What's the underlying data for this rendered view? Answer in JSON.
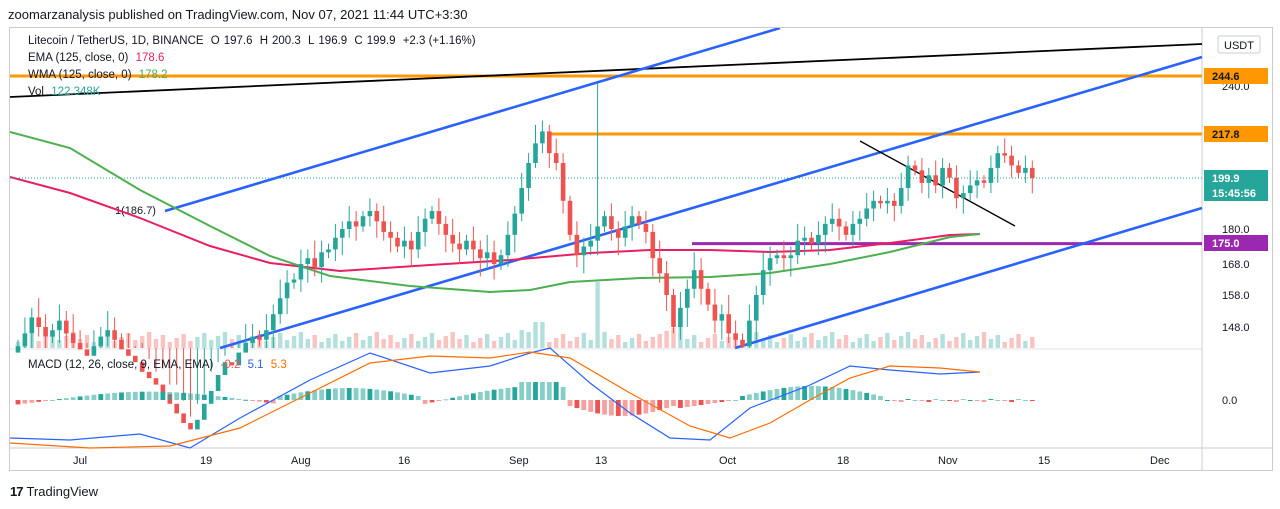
{
  "header": {
    "publisher": "zoomarzanalysis published on TradingView.com, Nov 07, 2021 11:44 UTC+3:30"
  },
  "legend": {
    "symbol": "Litecoin / TetherUS, 1D, BINANCE",
    "open_label": "O",
    "open": "197.6",
    "high_label": "H",
    "high": "200.3",
    "low_label": "L",
    "low": "196.9",
    "close_label": "C",
    "close": "199.9",
    "change": "+2.3 (+1.16%)",
    "ema_label": "EMA (125, close, 0)",
    "ema_value": "178.6",
    "wma_label": "WMA (125, close, 0)",
    "wma_value": "178.2",
    "vol_label": "Vol",
    "vol_value": "122.348K",
    "macd_label": "MACD (12, 26, close, 9, EMA, EMA)",
    "macd_hist": "-0.2",
    "macd_line": "5.1",
    "macd_signal": "5.3"
  },
  "footer": {
    "brand": "TradingView",
    "logo": "17"
  },
  "colors": {
    "up": "#26a69a",
    "down": "#ef5350",
    "ema": "#e91e63",
    "wma": "#4caf50",
    "channel": "#2962ff",
    "resistance": "#ff9800",
    "support": "#9c27b0",
    "macd": "#2962ff",
    "signal": "#ff6d00",
    "trendline": "#000000"
  },
  "chart_data": {
    "type": "candlestick",
    "title": "Litecoin / TetherUS, 1D, BINANCE",
    "currency": "USDT",
    "price_axis": {
      "ticks": [
        "148.0",
        "158.0",
        "168.0",
        "180.0",
        "240.0"
      ],
      "labels": [
        {
          "text": "244.6",
          "kind": "resistance"
        },
        {
          "text": "217.8",
          "kind": "resistance"
        },
        {
          "text": "199.9",
          "kind": "last"
        },
        {
          "text": "15:45:56",
          "kind": "countdown"
        },
        {
          "text": "175.0",
          "kind": "support"
        }
      ],
      "macd_ticks": [
        "0.0"
      ]
    },
    "time_axis": {
      "ticks": [
        "Jul",
        "19",
        "Aug",
        "16",
        "Sep",
        "13",
        "Oct",
        "18",
        "Nov",
        "15",
        "Dec"
      ]
    },
    "horizontal_levels": [
      {
        "price": 244.6,
        "color": "resistance"
      },
      {
        "price": 217.8,
        "color": "resistance"
      },
      {
        "price": 175.0,
        "color": "support"
      }
    ],
    "last_price": 199.9,
    "candles_note": "approx. 140 daily candles from mid-Jun to 07 Nov 2021; values estimated from the picture",
    "series": {
      "close": [
        142,
        146,
        151,
        148,
        145,
        147,
        150,
        146,
        143,
        141,
        139,
        142,
        145,
        147,
        144,
        141,
        139,
        137,
        134,
        132,
        130,
        127,
        124,
        121,
        118,
        116,
        119,
        124,
        128,
        133,
        137,
        136,
        140,
        143,
        145,
        144,
        147,
        152,
        157,
        162,
        163,
        168,
        170,
        167,
        172,
        173,
        177,
        180,
        183,
        181,
        185,
        187,
        183,
        179,
        177,
        174,
        176,
        173,
        179,
        184,
        187,
        182,
        178,
        175,
        173,
        176,
        173,
        170,
        172,
        168,
        171,
        178,
        186,
        196,
        206,
        214,
        219,
        210,
        206,
        191,
        178,
        171,
        174,
        176,
        181,
        185,
        180,
        177,
        181,
        185,
        182,
        179,
        170,
        165,
        158,
        148,
        154,
        160,
        166,
        160,
        155,
        150,
        152,
        146,
        144,
        142,
        150,
        158,
        166,
        170,
        171,
        170,
        171,
        176,
        177,
        175,
        178,
        182,
        184,
        181,
        178,
        182,
        184,
        188,
        191,
        190,
        191,
        189,
        196,
        205,
        203,
        198,
        201,
        197,
        204,
        200,
        192,
        194,
        197,
        199,
        198,
        204,
        210,
        209,
        205,
        202,
        204,
        199.9
      ],
      "volume_relative": "bars at bottom of price pane, peaks near Sep 7 and Sep 13"
    }
  }
}
